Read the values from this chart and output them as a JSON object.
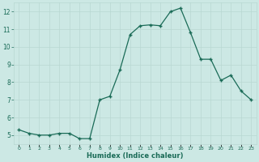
{
  "x": [
    0,
    1,
    2,
    3,
    4,
    5,
    6,
    7,
    8,
    9,
    10,
    11,
    12,
    13,
    14,
    15,
    16,
    17,
    18,
    19,
    20,
    21,
    22,
    23
  ],
  "y": [
    5.3,
    5.1,
    5.0,
    5.0,
    5.1,
    5.1,
    4.8,
    4.8,
    7.0,
    7.2,
    8.7,
    10.7,
    11.2,
    11.25,
    11.2,
    12.0,
    12.2,
    10.8,
    9.3,
    9.3,
    8.1,
    8.4,
    7.5,
    7.0
  ],
  "xlabel": "Humidex (Indice chaleur)",
  "xlim": [
    -0.5,
    23.5
  ],
  "ylim": [
    4.5,
    12.5
  ],
  "yticks": [
    5,
    6,
    7,
    8,
    9,
    10,
    11,
    12
  ],
  "xtick_labels": [
    "0",
    "1",
    "2",
    "3",
    "4",
    "5",
    "6",
    "7",
    "8",
    "9",
    "10",
    "11",
    "12",
    "13",
    "14",
    "15",
    "16",
    "17",
    "18",
    "19",
    "20",
    "21",
    "22",
    "23"
  ],
  "line_color": "#1a6b57",
  "marker_color": "#1a6b57",
  "bg_color": "#cce8e4",
  "grid_color": "#b8d8d2",
  "label_color": "#1a6b57"
}
